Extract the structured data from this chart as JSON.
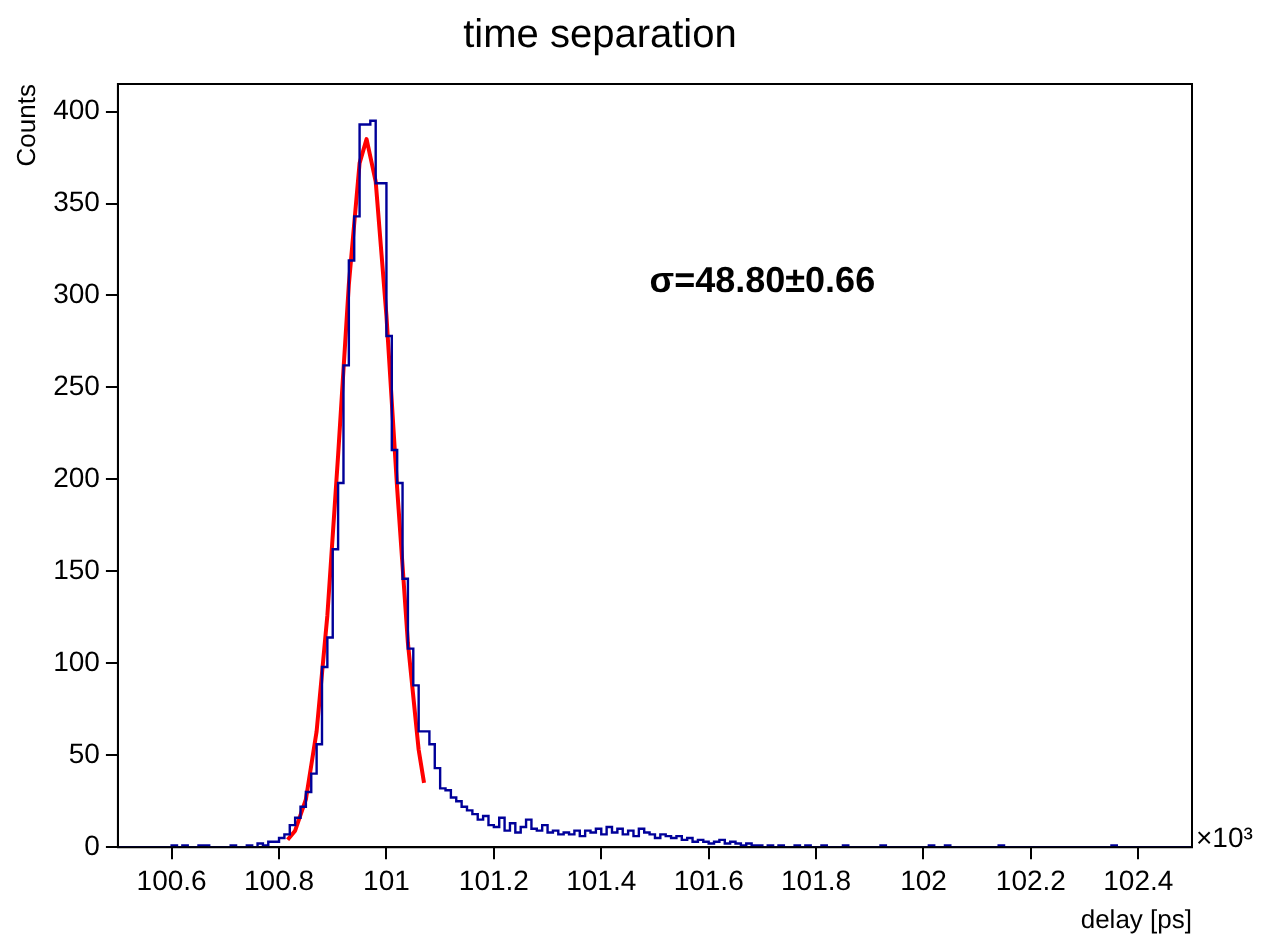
{
  "chart_data": {
    "type": "histogram",
    "title": "time separation",
    "xlabel": "delay [ps]",
    "ylabel": "Counts",
    "annotations": [
      "σ=48.80±0.66",
      "×10³"
    ],
    "xlim": [
      100.5,
      102.5
    ],
    "ylim": [
      0,
      415
    ],
    "xticks": [
      100.6,
      100.8,
      101,
      101.2,
      101.4,
      101.6,
      101.8,
      102,
      102.2,
      102.4
    ],
    "yticks": [
      0,
      50,
      100,
      150,
      200,
      250,
      300,
      350,
      400
    ],
    "bins": [
      100.5,
      100.51,
      100.52,
      100.53,
      100.54,
      100.55,
      100.56,
      100.57,
      100.58,
      100.59,
      100.6,
      100.61,
      100.62,
      100.63,
      100.64,
      100.65,
      100.66,
      100.67,
      100.68,
      100.69,
      100.7,
      100.71,
      100.72,
      100.73,
      100.74,
      100.75,
      100.76,
      100.77,
      100.78,
      100.79,
      100.8,
      100.81,
      100.82,
      100.83,
      100.84,
      100.85,
      100.86,
      100.87,
      100.88,
      100.89,
      100.9,
      100.91,
      100.92,
      100.93,
      100.94,
      100.95,
      100.96,
      100.97,
      100.98,
      100.99,
      101,
      101.01,
      101.02,
      101.03,
      101.04,
      101.05,
      101.06,
      101.07,
      101.08,
      101.09,
      101.1,
      101.11,
      101.12,
      101.13,
      101.14,
      101.15,
      101.16,
      101.17,
      101.18,
      101.19,
      101.2,
      101.21,
      101.22,
      101.23,
      101.24,
      101.25,
      101.26,
      101.27,
      101.28,
      101.29,
      101.3,
      101.31,
      101.32,
      101.33,
      101.34,
      101.35,
      101.36,
      101.37,
      101.38,
      101.39,
      101.4,
      101.41,
      101.42,
      101.43,
      101.44,
      101.45,
      101.46,
      101.47,
      101.48,
      101.49,
      101.5,
      101.51,
      101.52,
      101.53,
      101.54,
      101.55,
      101.56,
      101.57,
      101.58,
      101.59,
      101.6,
      101.61,
      101.62,
      101.63,
      101.64,
      101.65,
      101.66,
      101.67,
      101.68,
      101.69,
      101.7,
      101.71,
      101.72,
      101.73,
      101.74,
      101.75,
      101.76,
      101.77,
      101.78,
      101.79,
      101.8,
      101.81,
      101.82,
      101.83,
      101.84,
      101.85,
      101.86,
      101.87,
      101.88,
      101.89,
      101.9,
      101.91,
      101.92,
      101.93,
      101.94,
      101.95,
      101.96,
      101.97,
      101.98,
      101.99,
      102,
      102.01,
      102.02,
      102.03,
      102.04,
      102.05,
      102.06,
      102.07,
      102.08,
      102.09,
      102.1,
      102.11,
      102.12,
      102.13,
      102.14,
      102.15,
      102.16,
      102.17,
      102.18,
      102.19,
      102.2,
      102.21,
      102.22,
      102.23,
      102.24,
      102.25,
      102.26,
      102.27,
      102.28,
      102.29,
      102.3,
      102.31,
      102.32,
      102.33,
      102.34,
      102.35,
      102.36,
      102.37,
      102.38,
      102.39,
      102.4,
      102.41,
      102.42,
      102.43,
      102.44,
      102.45,
      102.46,
      102.47,
      102.48,
      102.49,
      102.5
    ],
    "series": [
      {
        "type": "histogram",
        "color": "#000099",
        "values": [
          0,
          0,
          0,
          0,
          0,
          0,
          0,
          0,
          0,
          0,
          1,
          0,
          1,
          0,
          0,
          1,
          1,
          0,
          0,
          0,
          0,
          1,
          0,
          0,
          1,
          0,
          2,
          1,
          3,
          3,
          5,
          7,
          12,
          16,
          22,
          30,
          40,
          56,
          98,
          114,
          162,
          198,
          262,
          319,
          343,
          393,
          393,
          395,
          361,
          361,
          278,
          216,
          198,
          146,
          108,
          88,
          63,
          63,
          56,
          43,
          32,
          31,
          27,
          25,
          22,
          20,
          18,
          15,
          17,
          12,
          11,
          16,
          9,
          13,
          8,
          11,
          15,
          10,
          9,
          12,
          8,
          9,
          7,
          8,
          7,
          9,
          6,
          9,
          8,
          10,
          7,
          11,
          8,
          10,
          7,
          9,
          6,
          10,
          8,
          7,
          5,
          7,
          6,
          5,
          6,
          4,
          5,
          3,
          4,
          3,
          2,
          3,
          4,
          2,
          3,
          2,
          1,
          2,
          1,
          1,
          0,
          1,
          0,
          1,
          0,
          0,
          1,
          0,
          1,
          0,
          0,
          1,
          0,
          0,
          0,
          1,
          0,
          0,
          0,
          0,
          0,
          0,
          1,
          0,
          0,
          0,
          0,
          0,
          0,
          0,
          0,
          1,
          0,
          0,
          1,
          0,
          0,
          0,
          0,
          0,
          0,
          0,
          0,
          0,
          1,
          0,
          0,
          0,
          0,
          0,
          0,
          0,
          0,
          0,
          0,
          0,
          0,
          0,
          0,
          0,
          0,
          0,
          0,
          0,
          0,
          1,
          0,
          0,
          0,
          0,
          0,
          0,
          0,
          0,
          0,
          0,
          0,
          0,
          0,
          0
        ]
      },
      {
        "type": "line",
        "color": "#ff0000",
        "x": [
          100.816,
          100.83,
          100.85,
          100.87,
          100.89,
          100.91,
          100.93,
          100.95,
          100.963,
          100.98,
          101,
          101.02,
          101.04,
          101.06,
          101.07
        ],
        "values": [
          4,
          9,
          26,
          63,
          126,
          213,
          306,
          372,
          385,
          362,
          289,
          195,
          111,
          53,
          35
        ]
      }
    ]
  }
}
